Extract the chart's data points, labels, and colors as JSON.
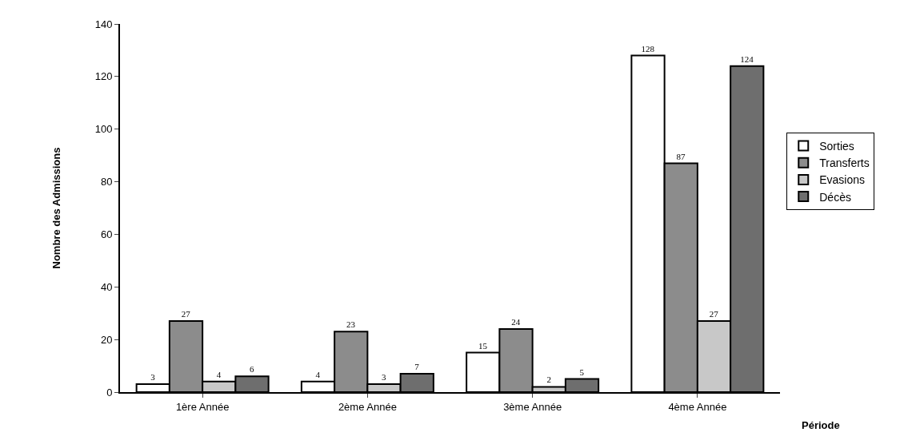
{
  "chart_data": {
    "type": "bar",
    "xlabel": "Période",
    "ylabel": "Nombre des Admissions",
    "categories": [
      "1ère Année",
      "2ème Année",
      "3ème Année",
      "4ème Année"
    ],
    "series": [
      {
        "name": "Sorties",
        "color": "#ffffff",
        "values": [
          3,
          4,
          15,
          128
        ]
      },
      {
        "name": "Transferts",
        "color": "#8c8c8c",
        "values": [
          27,
          23,
          24,
          87
        ]
      },
      {
        "name": "Evasions",
        "color": "#c8c8c8",
        "values": [
          4,
          3,
          2,
          27
        ]
      },
      {
        "name": "Décès",
        "color": "#6e6e6e",
        "values": [
          6,
          7,
          5,
          124
        ]
      }
    ],
    "ylim": [
      0,
      140
    ],
    "yticks": [
      0,
      20,
      40,
      60,
      80,
      100,
      120,
      140
    ],
    "grid": false,
    "legend": "right",
    "data_labels": true
  }
}
